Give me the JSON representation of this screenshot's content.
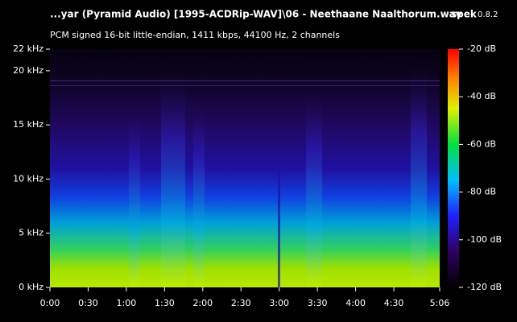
{
  "app": {
    "name": "spek",
    "version": "0.8.2"
  },
  "chart_data": {
    "type": "spectrogram",
    "title": "...yar (Pyramid Audio) [1995-ACDRip-WAV]\\06 - Neethaane Naalthorum.wav",
    "subtitle": "PCM signed 16-bit little-endian, 1411 kbps, 44100 Hz, 2 channels",
    "xlim": [
      0,
      306
    ],
    "xticks": [
      {
        "value": 0,
        "label": "0:00"
      },
      {
        "value": 30,
        "label": "0:30"
      },
      {
        "value": 60,
        "label": "1:00"
      },
      {
        "value": 90,
        "label": "1:30"
      },
      {
        "value": 120,
        "label": "2:00"
      },
      {
        "value": 150,
        "label": "2:30"
      },
      {
        "value": 180,
        "label": "3:00"
      },
      {
        "value": 210,
        "label": "3:30"
      },
      {
        "value": 240,
        "label": "4:00"
      },
      {
        "value": 270,
        "label": "4:30"
      },
      {
        "value": 306,
        "label": "5:06"
      }
    ],
    "ylim": [
      0,
      22
    ],
    "yticks": [
      {
        "value": 0,
        "label": "0 kHz"
      },
      {
        "value": 5,
        "label": "5 kHz"
      },
      {
        "value": 10,
        "label": "10 kHz"
      },
      {
        "value": 15,
        "label": "15 kHz"
      },
      {
        "value": 20,
        "label": "20 kHz"
      },
      {
        "value": 22,
        "label": "22 kHz"
      }
    ],
    "colorbar": {
      "lim": [
        -120,
        -20
      ],
      "ticks": [
        {
          "value": -20,
          "label": "-20 dB"
        },
        {
          "value": -40,
          "label": "-40 dB"
        },
        {
          "value": -60,
          "label": "-60 dB"
        },
        {
          "value": -80,
          "label": "-80 dB"
        },
        {
          "value": -100,
          "label": "-100 dB"
        },
        {
          "value": -120,
          "label": "-120 dB"
        }
      ]
    }
  }
}
